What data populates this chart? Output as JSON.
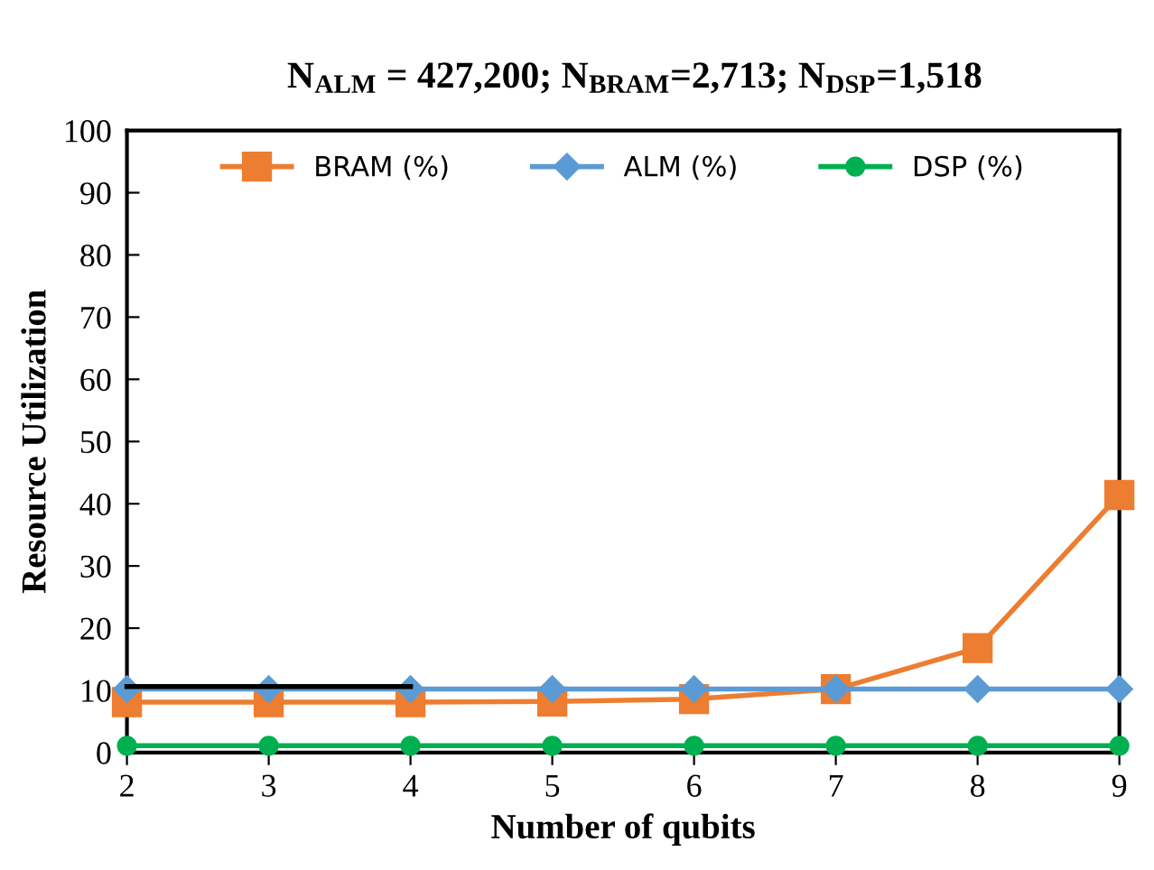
{
  "chart_data": {
    "type": "line",
    "title": "N$_{ALM}$ = 427,200; N$_{BRAM}$=2,713; N$_{DSP}$=1,518",
    "xlabel": "Number of qubits",
    "ylabel": "Resource Utilization",
    "x": [
      2,
      3,
      4,
      5,
      6,
      7,
      8,
      9
    ],
    "series": [
      {
        "name": "BRAM (%)",
        "color": "#ed7d31",
        "marker": "square",
        "values": [
          8.1,
          8.1,
          8.1,
          8.2,
          8.6,
          10.2,
          16.8,
          41.4
        ]
      },
      {
        "name": "ALM (%)",
        "color": "#5b9bd5",
        "marker": "diamond",
        "values": [
          10.2,
          10.2,
          10.2,
          10.2,
          10.2,
          10.2,
          10.2,
          10.2
        ]
      },
      {
        "name": "DSP (%)",
        "color": "#00b050",
        "marker": "circle",
        "values": [
          1.1,
          1.1,
          1.1,
          1.1,
          1.1,
          1.1,
          1.1,
          1.1
        ]
      },
      {
        "color": "#000000",
        "marker": "none",
        "values": [
          10.6,
          10.6,
          10.6,
          null,
          null,
          null,
          null,
          null
        ]
      }
    ],
    "xlim": [
      2,
      9
    ],
    "ylim": [
      0,
      100
    ],
    "xticks": [
      2,
      3,
      4,
      5,
      6,
      7,
      8,
      9
    ],
    "yticks": [
      0,
      10,
      20,
      30,
      40,
      50,
      60,
      70,
      80,
      90,
      100
    ],
    "grid": false,
    "legend": "top",
    "line_style": "solid"
  }
}
